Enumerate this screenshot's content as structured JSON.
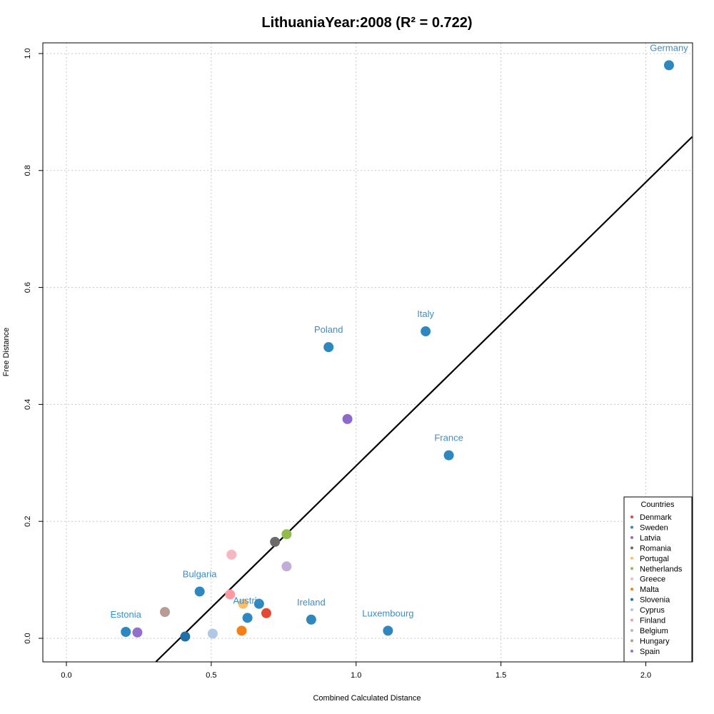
{
  "chart_data": {
    "type": "scatter",
    "title": "LithuaniaYear:2008 (R² = 0.722)",
    "xlabel": "Combined Calculated Distance",
    "ylabel": "Free Distance",
    "xlim": [
      -0.08,
      2.16
    ],
    "ylim": [
      -0.04,
      1.02
    ],
    "xticks": [
      "0.0",
      "0.5",
      "1.0",
      "1.5",
      "2.0"
    ],
    "yticks": [
      "0.0",
      "0.2",
      "0.4",
      "0.6",
      "0.8",
      "1.0"
    ],
    "grid": true,
    "legend_title": "Countries",
    "legend_position": "bottom-right",
    "legend": [
      {
        "name": "Denmark",
        "color": "#e34a33"
      },
      {
        "name": "Sweden",
        "color": "#2f87c0"
      },
      {
        "name": "Latvia",
        "color": "#8c6bc8"
      },
      {
        "name": "Romania",
        "color": "#6b6b6b"
      },
      {
        "name": "Portugal",
        "color": "#ffbd66"
      },
      {
        "name": "Netherlands",
        "color": "#8fbc4a"
      },
      {
        "name": "Greece",
        "color": "#f7b6c2"
      },
      {
        "name": "Malta",
        "color": "#f57f17"
      },
      {
        "name": "Slovenia",
        "color": "#1f6fa8"
      },
      {
        "name": "Cyprus",
        "color": "#b0c8e8"
      },
      {
        "name": "Finland",
        "color": "#ff9aa2"
      },
      {
        "name": "Belgium",
        "color": "#c0aed8"
      },
      {
        "name": "Hungary",
        "color": "#b89b94"
      },
      {
        "name": "Spain",
        "color": "#9370cc"
      }
    ],
    "regression_line": {
      "slope": 0.485,
      "intercept": -0.19
    },
    "points": [
      {
        "label": "Germany",
        "x": 2.08,
        "y": 0.98,
        "color": "#2f87c0"
      },
      {
        "label": "Italy",
        "x": 1.24,
        "y": 0.525,
        "color": "#2f87c0"
      },
      {
        "label": "Poland",
        "x": 0.905,
        "y": 0.498,
        "color": "#2f87c0"
      },
      {
        "label": "",
        "x": 0.97,
        "y": 0.375,
        "color": "#8c6bc8"
      },
      {
        "label": "France",
        "x": 1.32,
        "y": 0.313,
        "color": "#2f87c0"
      },
      {
        "label": "",
        "x": 0.76,
        "y": 0.178,
        "color": "#8fbc4a"
      },
      {
        "label": "",
        "x": 0.72,
        "y": 0.165,
        "color": "#6b6b6b"
      },
      {
        "label": "",
        "x": 0.57,
        "y": 0.143,
        "color": "#f7b6c2"
      },
      {
        "label": "",
        "x": 0.76,
        "y": 0.123,
        "color": "#c0aed8"
      },
      {
        "label": "Bulgaria",
        "x": 0.46,
        "y": 0.08,
        "color": "#2f87c0"
      },
      {
        "label": "",
        "x": 0.565,
        "y": 0.075,
        "color": "#ff9aa2"
      },
      {
        "label": "",
        "x": 0.61,
        "y": 0.059,
        "color": "#ffbd66"
      },
      {
        "label": "",
        "x": 0.665,
        "y": 0.059,
        "color": "#2f87c0"
      },
      {
        "label": "Austria",
        "x": 0.625,
        "y": 0.035,
        "color": "#2f87c0"
      },
      {
        "label": "",
        "x": 0.69,
        "y": 0.043,
        "color": "#e34a33"
      },
      {
        "label": "",
        "x": 0.34,
        "y": 0.045,
        "color": "#b89b94"
      },
      {
        "label": "Ireland",
        "x": 0.845,
        "y": 0.032,
        "color": "#2f87c0"
      },
      {
        "label": "Luxembourg",
        "x": 1.11,
        "y": 0.013,
        "color": "#2f87c0"
      },
      {
        "label": "",
        "x": 0.605,
        "y": 0.013,
        "color": "#f57f17"
      },
      {
        "label": "Estonia",
        "x": 0.205,
        "y": 0.011,
        "color": "#2f87c0"
      },
      {
        "label": "",
        "x": 0.245,
        "y": 0.01,
        "color": "#9370cc"
      },
      {
        "label": "",
        "x": 0.505,
        "y": 0.008,
        "color": "#b0c8e8"
      },
      {
        "label": "",
        "x": 0.41,
        "y": 0.003,
        "color": "#1f6fa8"
      }
    ]
  }
}
